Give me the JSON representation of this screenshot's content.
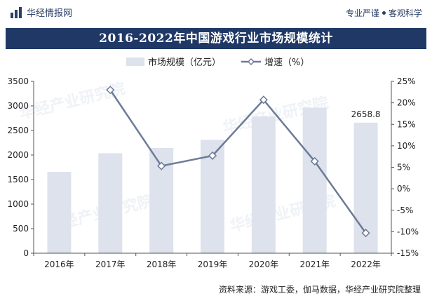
{
  "header": {
    "brand": "华经情报网",
    "tagline_left": "专业严谨",
    "tagline_right": "客观科学"
  },
  "colors": {
    "bar": "#dde2ec",
    "line": "#6d7b98",
    "title_bg": "#1f3866",
    "brand": "#2b3f67"
  },
  "footer": {
    "source": "资料来源：游戏工委，伽马数据，华经产业研究院整理",
    "watermark": "华经产业研究院"
  },
  "chart_data": {
    "type": "bar",
    "title": "2016-2022年中国游戏行业市场规模统计",
    "categories": [
      "2016年",
      "2017年",
      "2018年",
      "2019年",
      "2020年",
      "2021年",
      "2022年"
    ],
    "series": [
      {
        "name": "市场规模（亿元）",
        "type": "bar",
        "axis": "left",
        "values": [
          1655.7,
          2036.1,
          2144.4,
          2308.8,
          2786.9,
          2965.1,
          2658.8
        ],
        "data_labels": [
          null,
          null,
          null,
          null,
          null,
          null,
          "2658.8"
        ]
      },
      {
        "name": "增速（%）",
        "type": "line",
        "axis": "right",
        "values": [
          null,
          23.0,
          5.3,
          7.7,
          20.7,
          6.4,
          -10.3
        ]
      }
    ],
    "y_left": {
      "min": 0,
      "max": 3500,
      "ticks": [
        "0",
        "500",
        "1000",
        "1500",
        "2000",
        "2500",
        "3000",
        "3500"
      ]
    },
    "y_right": {
      "min": -15,
      "max": 25,
      "ticks": [
        "-15%",
        "-10%",
        "-5%",
        "0%",
        "5%",
        "10%",
        "15%",
        "20%",
        "25%"
      ]
    },
    "legend_position": "top-center",
    "grid": false
  }
}
